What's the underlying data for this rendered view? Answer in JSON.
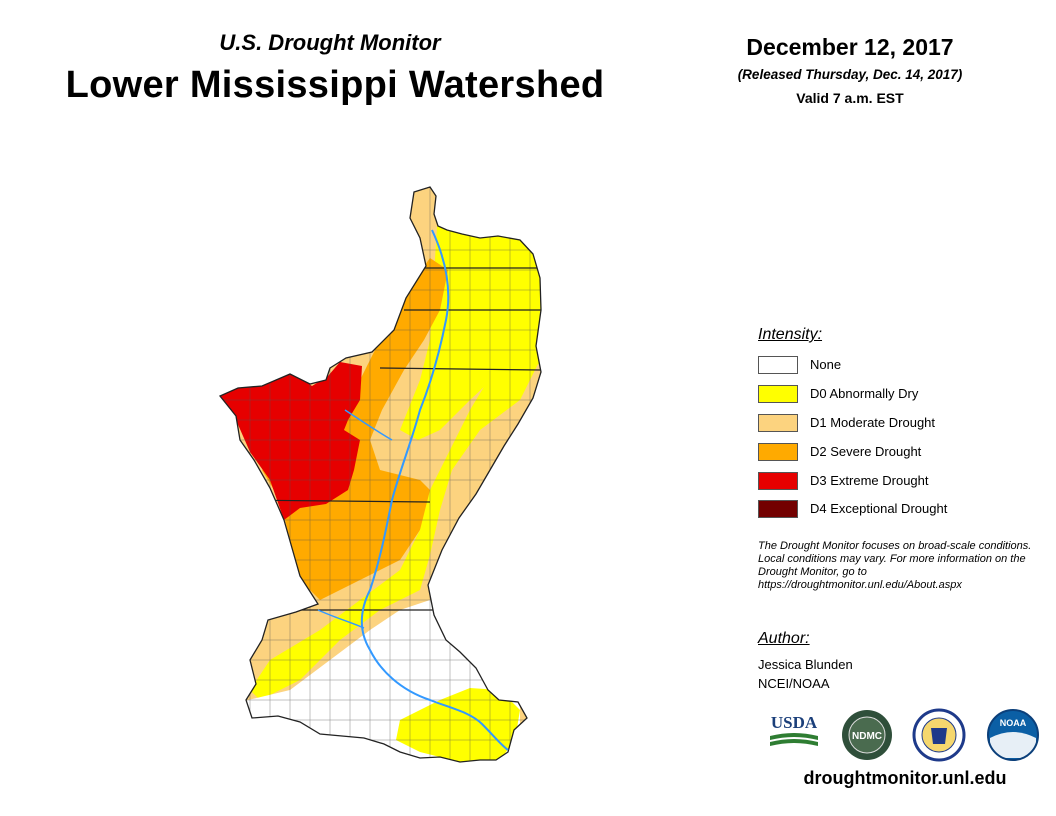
{
  "header": {
    "subtitle": "U.S. Drought Monitor",
    "title": "Lower Mississippi Watershed",
    "date": "December 12, 2017",
    "released": "(Released Thursday, Dec. 14, 2017)",
    "valid": "Valid 7 a.m. EST"
  },
  "legend": {
    "title": "Intensity:",
    "items": [
      {
        "label": "None",
        "color": "#ffffff"
      },
      {
        "label": "D0 Abnormally Dry",
        "color": "#ffff00"
      },
      {
        "label": "D1 Moderate Drought",
        "color": "#fcd37f"
      },
      {
        "label": "D2 Severe Drought",
        "color": "#ffaa00"
      },
      {
        "label": "D3 Extreme Drought",
        "color": "#e60000"
      },
      {
        "label": "D4 Exceptional Drought",
        "color": "#730000"
      }
    ]
  },
  "note": "The Drought Monitor focuses on broad-scale conditions. Local conditions may vary. For more information on the Drought Monitor, go to https://droughtmonitor.unl.edu/About.aspx",
  "author": {
    "title": "Author:",
    "name": "Jessica Blunden",
    "org": "NCEI/NOAA"
  },
  "logos": {
    "usda": "USDA",
    "ndmc": "NDMC",
    "noaa": "NOAA"
  },
  "website": "droughtmonitor.unl.edu",
  "colors": {
    "river": "#3399ff",
    "boundary": "#333333"
  }
}
